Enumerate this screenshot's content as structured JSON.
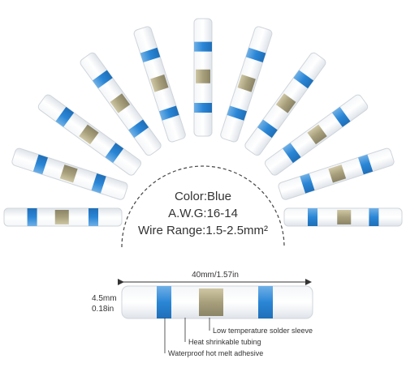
{
  "specs": {
    "color": "Color:Blue",
    "awg": "A.W.G:16-14",
    "wire_range": "Wire  Range:1.5-2.5mm²"
  },
  "dimensions": {
    "length": "40mm/1.57in",
    "diameter_mm": "4.5mm",
    "diameter_in": "0.18in"
  },
  "callouts": [
    "Low temperature solder sleeve",
    "Heat shrinkable tubing",
    "Waterproof hot melt adhesive"
  ]
}
